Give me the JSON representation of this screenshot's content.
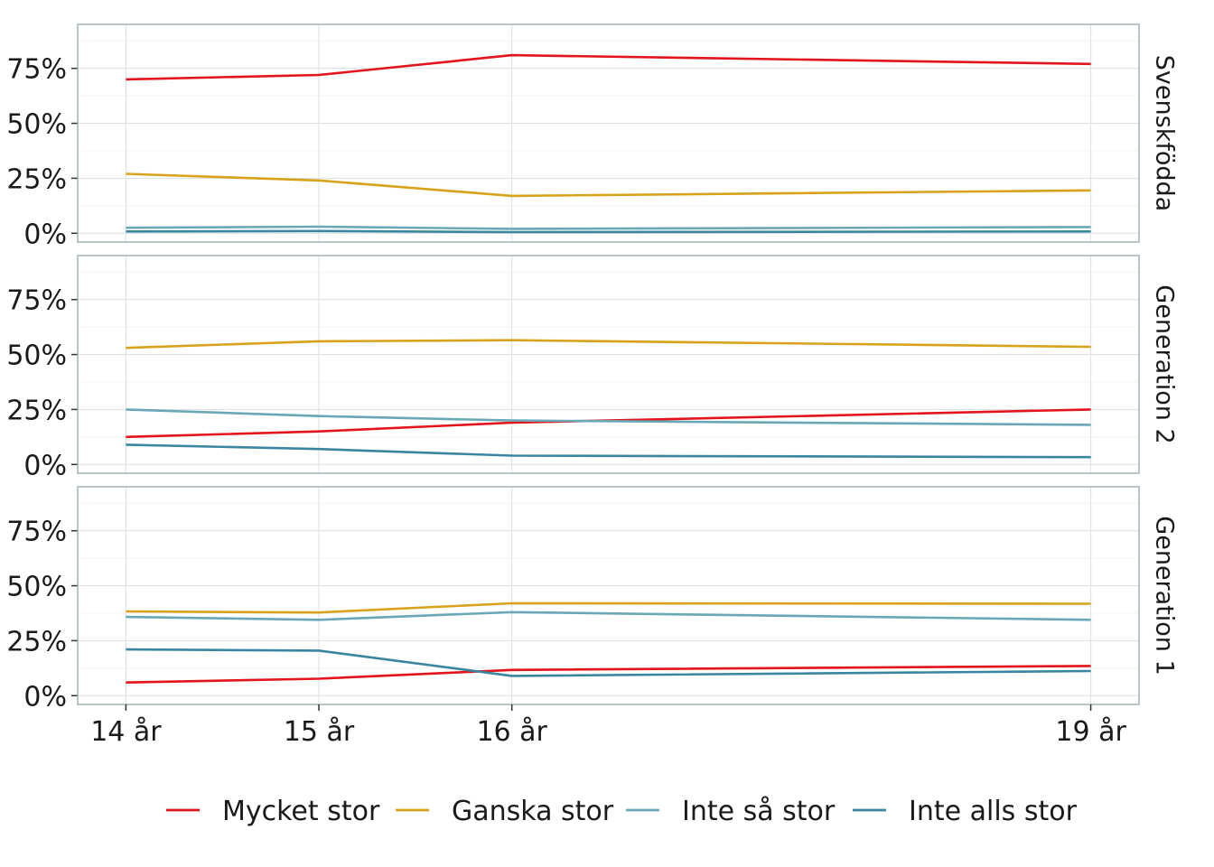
{
  "chart_data": {
    "type": "line",
    "title": "",
    "xlabel": "",
    "ylabel": "",
    "categories": [
      "14 år",
      "15 år",
      "16 år",
      "19 år"
    ],
    "x": [
      14,
      15,
      16,
      19
    ],
    "xlim": [
      13.75,
      19.25
    ],
    "ylim": [
      -0.04,
      0.95
    ],
    "y_ticks": [
      "0%",
      "25%",
      "50%",
      "75%"
    ],
    "y_tick_values": [
      0,
      0.25,
      0.5,
      0.75
    ],
    "grid": true,
    "legend_position": "bottom",
    "legend": [
      {
        "name": "Mycket stor",
        "color": "#e3141c"
      },
      {
        "name": "Ganska stor",
        "color": "#d9a21b"
      },
      {
        "name": "Inte så stor",
        "color": "#6aa8b8"
      },
      {
        "name": "Inte alls stor",
        "color": "#3a86a0"
      }
    ],
    "panels": [
      {
        "label": "Svenskfödda",
        "series": [
          {
            "name": "Mycket stor",
            "values": [
              0.7,
              0.72,
              0.81,
              0.77
            ]
          },
          {
            "name": "Ganska stor",
            "values": [
              0.27,
              0.24,
              0.17,
              0.195
            ]
          },
          {
            "name": "Inte så stor",
            "values": [
              0.025,
              0.03,
              0.02,
              0.028
            ]
          },
          {
            "name": "Inte alls stor",
            "values": [
              0.008,
              0.01,
              0.005,
              0.008
            ]
          }
        ]
      },
      {
        "label": "Generation 2",
        "series": [
          {
            "name": "Mycket stor",
            "values": [
              0.125,
              0.15,
              0.19,
              0.25
            ]
          },
          {
            "name": "Ganska stor",
            "values": [
              0.53,
              0.56,
              0.565,
              0.535
            ]
          },
          {
            "name": "Inte så stor",
            "values": [
              0.25,
              0.22,
              0.2,
              0.18
            ]
          },
          {
            "name": "Inte alls stor",
            "values": [
              0.09,
              0.07,
              0.04,
              0.033
            ]
          }
        ]
      },
      {
        "label": "Generation 1",
        "series": [
          {
            "name": "Mycket stor",
            "values": [
              0.06,
              0.077,
              0.117,
              0.135
            ]
          },
          {
            "name": "Ganska stor",
            "values": [
              0.383,
              0.378,
              0.42,
              0.418
            ]
          },
          {
            "name": "Inte så stor",
            "values": [
              0.358,
              0.345,
              0.38,
              0.345
            ]
          },
          {
            "name": "Inte alls stor",
            "values": [
              0.21,
              0.205,
              0.09,
              0.112
            ]
          }
        ]
      }
    ]
  }
}
